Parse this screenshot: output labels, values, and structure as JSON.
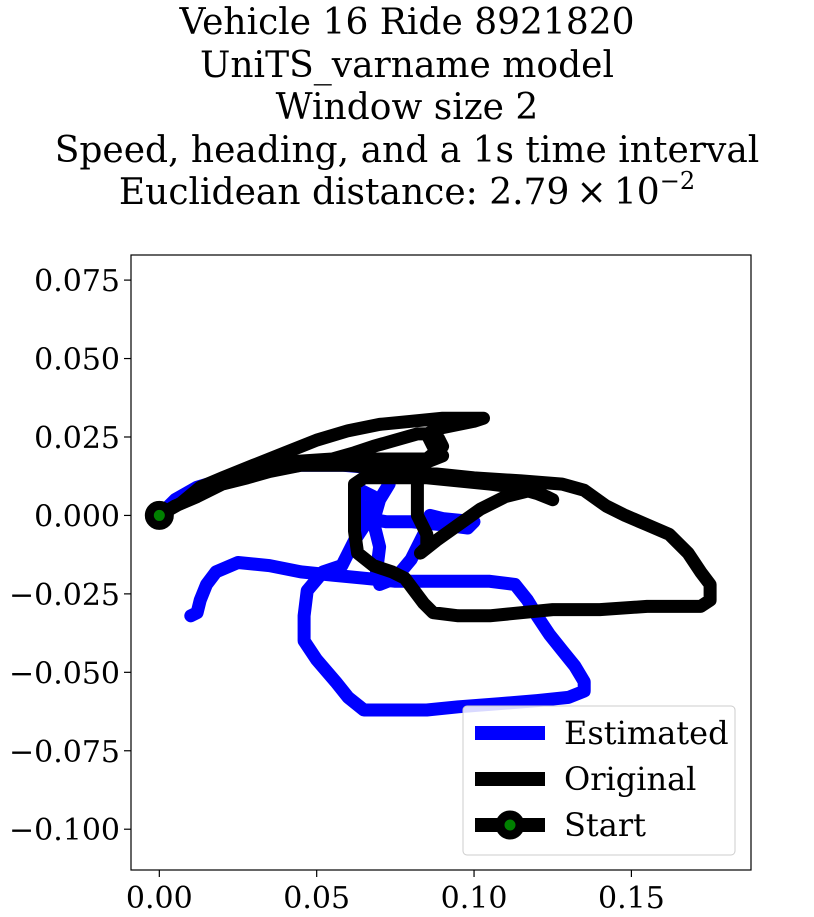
{
  "title_lines": [
    "Vehicle 16 Ride 8921820",
    "UniTS_varname model",
    "Window size 2",
    "Speed, heading, and a 1s time interval"
  ],
  "distance_prefix": "Euclidean distance: 2.79 × 10",
  "distance_exponent": "−2",
  "chart_data": {
    "type": "line",
    "xlim": [
      -0.009,
      0.188
    ],
    "ylim": [
      -0.113,
      0.083
    ],
    "xticks": [
      0.0,
      0.05,
      0.1,
      0.15
    ],
    "xtick_labels": [
      "0.00",
      "0.05",
      "0.10",
      "0.15"
    ],
    "yticks": [
      0.075,
      0.05,
      0.025,
      0.0,
      -0.025,
      -0.05,
      -0.075,
      -0.1
    ],
    "ytick_labels": [
      "0.075",
      "0.050",
      "0.025",
      "0.000",
      "−0.025",
      "−0.050",
      "−0.075",
      "−0.100"
    ],
    "grid": false,
    "legend_position": "lower right",
    "series": [
      {
        "name": "Estimated",
        "color": "#0000ff",
        "points": [
          [
            0.0,
            0.0
          ],
          [
            0.005,
            0.005
          ],
          [
            0.012,
            0.009
          ],
          [
            0.022,
            0.012
          ],
          [
            0.033,
            0.014
          ],
          [
            0.045,
            0.016
          ],
          [
            0.058,
            0.016
          ],
          [
            0.07,
            0.015
          ],
          [
            0.073,
            0.01
          ],
          [
            0.07,
            0.005
          ],
          [
            0.068,
            -0.002
          ],
          [
            0.07,
            -0.01
          ],
          [
            0.069,
            -0.018
          ],
          [
            0.07,
            -0.022
          ],
          [
            0.075,
            -0.02
          ],
          [
            0.08,
            -0.014
          ],
          [
            0.084,
            -0.006
          ],
          [
            0.086,
            0.0
          ],
          [
            0.09,
            -0.001
          ],
          [
            0.1,
            -0.002
          ],
          [
            0.098,
            -0.004
          ],
          [
            0.09,
            -0.003
          ],
          [
            0.08,
            -0.002
          ],
          [
            0.072,
            -0.002
          ],
          [
            0.066,
            -0.001
          ],
          [
            0.063,
            0.002
          ],
          [
            0.064,
            0.008
          ],
          [
            0.068,
            0.006
          ],
          [
            0.066,
            -0.002
          ],
          [
            0.062,
            -0.008
          ],
          [
            0.058,
            -0.016
          ],
          [
            0.052,
            -0.018
          ],
          [
            0.047,
            -0.024
          ],
          [
            0.046,
            -0.032
          ],
          [
            0.046,
            -0.04
          ],
          [
            0.05,
            -0.046
          ],
          [
            0.056,
            -0.053
          ],
          [
            0.06,
            -0.058
          ],
          [
            0.065,
            -0.062
          ],
          [
            0.075,
            -0.062
          ],
          [
            0.085,
            -0.062
          ],
          [
            0.095,
            -0.061
          ],
          [
            0.108,
            -0.06
          ],
          [
            0.12,
            -0.059
          ],
          [
            0.13,
            -0.058
          ],
          [
            0.135,
            -0.056
          ],
          [
            0.135,
            -0.053
          ],
          [
            0.132,
            -0.048
          ],
          [
            0.128,
            -0.043
          ],
          [
            0.124,
            -0.038
          ],
          [
            0.12,
            -0.032
          ],
          [
            0.117,
            -0.027
          ],
          [
            0.113,
            -0.022
          ],
          [
            0.105,
            -0.021
          ],
          [
            0.095,
            -0.021
          ],
          [
            0.085,
            -0.021
          ],
          [
            0.075,
            -0.021
          ],
          [
            0.065,
            -0.02
          ],
          [
            0.055,
            -0.019
          ],
          [
            0.045,
            -0.018
          ],
          [
            0.035,
            -0.016
          ],
          [
            0.025,
            -0.015
          ],
          [
            0.018,
            -0.018
          ],
          [
            0.015,
            -0.022
          ],
          [
            0.013,
            -0.027
          ],
          [
            0.012,
            -0.031
          ],
          [
            0.01,
            -0.032
          ]
        ]
      },
      {
        "name": "Original",
        "color": "#000000",
        "points": [
          [
            0.0,
            0.0
          ],
          [
            0.007,
            0.004
          ],
          [
            0.013,
            0.009
          ],
          [
            0.02,
            0.012
          ],
          [
            0.03,
            0.016
          ],
          [
            0.04,
            0.02
          ],
          [
            0.05,
            0.024
          ],
          [
            0.06,
            0.027
          ],
          [
            0.07,
            0.029
          ],
          [
            0.08,
            0.03
          ],
          [
            0.09,
            0.031
          ],
          [
            0.1,
            0.031
          ],
          [
            0.103,
            0.031
          ],
          [
            0.1,
            0.03
          ],
          [
            0.09,
            0.028
          ],
          [
            0.085,
            0.026
          ],
          [
            0.087,
            0.022
          ],
          [
            0.09,
            0.019
          ],
          [
            0.085,
            0.017
          ],
          [
            0.082,
            0.012
          ],
          [
            0.082,
            0.006
          ],
          [
            0.082,
            0.0
          ],
          [
            0.085,
            -0.006
          ],
          [
            0.085,
            -0.01
          ],
          [
            0.083,
            -0.012
          ],
          [
            0.088,
            -0.008
          ],
          [
            0.095,
            -0.003
          ],
          [
            0.102,
            0.002
          ],
          [
            0.11,
            0.006
          ],
          [
            0.118,
            0.008
          ],
          [
            0.123,
            0.006
          ],
          [
            0.125,
            0.005
          ],
          [
            0.12,
            0.007
          ],
          [
            0.113,
            0.009
          ],
          [
            0.105,
            0.01
          ],
          [
            0.095,
            0.011
          ],
          [
            0.085,
            0.012
          ],
          [
            0.075,
            0.012
          ],
          [
            0.065,
            0.012
          ],
          [
            0.062,
            0.01
          ],
          [
            0.062,
            0.005
          ],
          [
            0.062,
            -0.005
          ],
          [
            0.063,
            -0.012
          ],
          [
            0.068,
            -0.016
          ],
          [
            0.074,
            -0.018
          ],
          [
            0.078,
            -0.02
          ],
          [
            0.081,
            -0.024
          ],
          [
            0.084,
            -0.028
          ],
          [
            0.087,
            -0.031
          ],
          [
            0.095,
            -0.032
          ],
          [
            0.105,
            -0.032
          ],
          [
            0.115,
            -0.031
          ],
          [
            0.125,
            -0.03
          ],
          [
            0.14,
            -0.03
          ],
          [
            0.155,
            -0.029
          ],
          [
            0.165,
            -0.029
          ],
          [
            0.172,
            -0.029
          ],
          [
            0.175,
            -0.027
          ],
          [
            0.175,
            -0.022
          ],
          [
            0.172,
            -0.018
          ],
          [
            0.168,
            -0.012
          ],
          [
            0.162,
            -0.006
          ],
          [
            0.155,
            -0.003
          ],
          [
            0.148,
            0.0
          ],
          [
            0.142,
            0.003
          ],
          [
            0.135,
            0.008
          ],
          [
            0.128,
            0.01
          ],
          [
            0.115,
            0.011
          ],
          [
            0.1,
            0.012
          ],
          [
            0.09,
            0.013
          ],
          [
            0.08,
            0.014
          ],
          [
            0.07,
            0.015
          ],
          [
            0.06,
            0.016
          ],
          [
            0.05,
            0.016
          ],
          [
            0.04,
            0.016
          ],
          [
            0.033,
            0.016
          ],
          [
            0.04,
            0.017
          ],
          [
            0.055,
            0.018
          ],
          [
            0.062,
            0.02
          ],
          [
            0.068,
            0.022
          ],
          [
            0.075,
            0.024
          ],
          [
            0.082,
            0.026
          ],
          [
            0.088,
            0.026
          ],
          [
            0.09,
            0.022
          ],
          [
            0.085,
            0.018
          ],
          [
            0.075,
            0.018
          ],
          [
            0.065,
            0.018
          ],
          [
            0.055,
            0.017
          ],
          [
            0.045,
            0.016
          ],
          [
            0.035,
            0.014
          ],
          [
            0.028,
            0.012
          ],
          [
            0.02,
            0.01
          ],
          [
            0.012,
            0.006
          ],
          [
            0.005,
            0.003
          ],
          [
            0.0,
            0.0
          ]
        ]
      }
    ],
    "start_marker": {
      "name": "Start",
      "x": 0.0,
      "y": 0.0,
      "color": "#008000",
      "edge_color": "#000000"
    }
  }
}
